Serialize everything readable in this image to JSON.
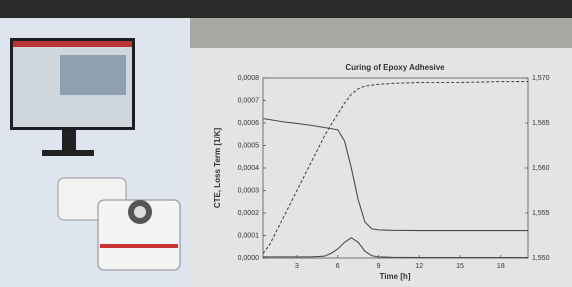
{
  "chart_data": {
    "type": "line",
    "title": "Curing of Epoxy Adhesive",
    "x_label": "Time [h]",
    "y_label": "CTE, Loss Term [1/K]",
    "x": [
      0.5,
      1,
      2,
      3,
      4,
      5,
      5.5,
      6,
      6.5,
      7,
      7.5,
      8,
      8.5,
      9,
      10,
      12,
      15,
      18,
      20
    ],
    "series": [
      {
        "color": "#4a4d4f",
        "dash": "solid",
        "values": [
          0.00062,
          0.000615,
          0.000605,
          0.000598,
          0.00059,
          0.00058,
          0.000575,
          0.00057,
          0.00052,
          0.0004,
          0.00026,
          0.00016,
          0.00013,
          0.000125,
          0.000123,
          0.000122,
          0.000122,
          0.000122,
          0.000122
        ]
      },
      {
        "color": "#4a4d4f",
        "dash": "solid",
        "values": [
          5e-06,
          5e-06,
          5e-06,
          5e-06,
          5e-06,
          8e-06,
          2e-05,
          4e-05,
          7e-05,
          9e-05,
          7e-05,
          3e-05,
          1e-05,
          5e-06,
          3e-06,
          2e-06,
          2e-06,
          2e-06,
          2e-06
        ]
      },
      {
        "color": "#4a4d4f",
        "dash": "dashed",
        "axis": "y2",
        "values": [
          1.5505,
          1.5515,
          1.5545,
          1.5575,
          1.5605,
          1.5635,
          1.5648,
          1.566,
          1.5672,
          1.5682,
          1.5688,
          1.5691,
          1.5692,
          1.5693,
          1.5694,
          1.5695,
          1.5695,
          1.5696,
          1.5696
        ]
      }
    ],
    "xlim": [
      0.5,
      20
    ],
    "xticks": [
      3,
      6,
      9,
      12,
      15,
      18
    ],
    "ylim": [
      0,
      0.0008
    ],
    "yticks": [
      {
        "value": 0,
        "label": "0,0000"
      },
      {
        "value": 0.0001,
        "label": "0,0001"
      },
      {
        "value": 0.0002,
        "label": "0,0002"
      },
      {
        "value": 0.0003,
        "label": "0,0003"
      },
      {
        "value": 0.0004,
        "label": "0,0004"
      },
      {
        "value": 0.0005,
        "label": "0,0005"
      },
      {
        "value": 0.0006,
        "label": "0,0006"
      },
      {
        "value": 0.0007,
        "label": "0,0007"
      },
      {
        "value": 0.0008,
        "label": "0,0008"
      }
    ],
    "y2lim": [
      1.55,
      1.57
    ],
    "y2ticks": [
      {
        "value": 1.55,
        "label": "1,550"
      },
      {
        "value": 1.555,
        "label": "1,555"
      },
      {
        "value": 1.56,
        "label": "1,560"
      },
      {
        "value": 1.565,
        "label": "1,565"
      },
      {
        "value": 1.57,
        "label": "1,570"
      }
    ]
  }
}
